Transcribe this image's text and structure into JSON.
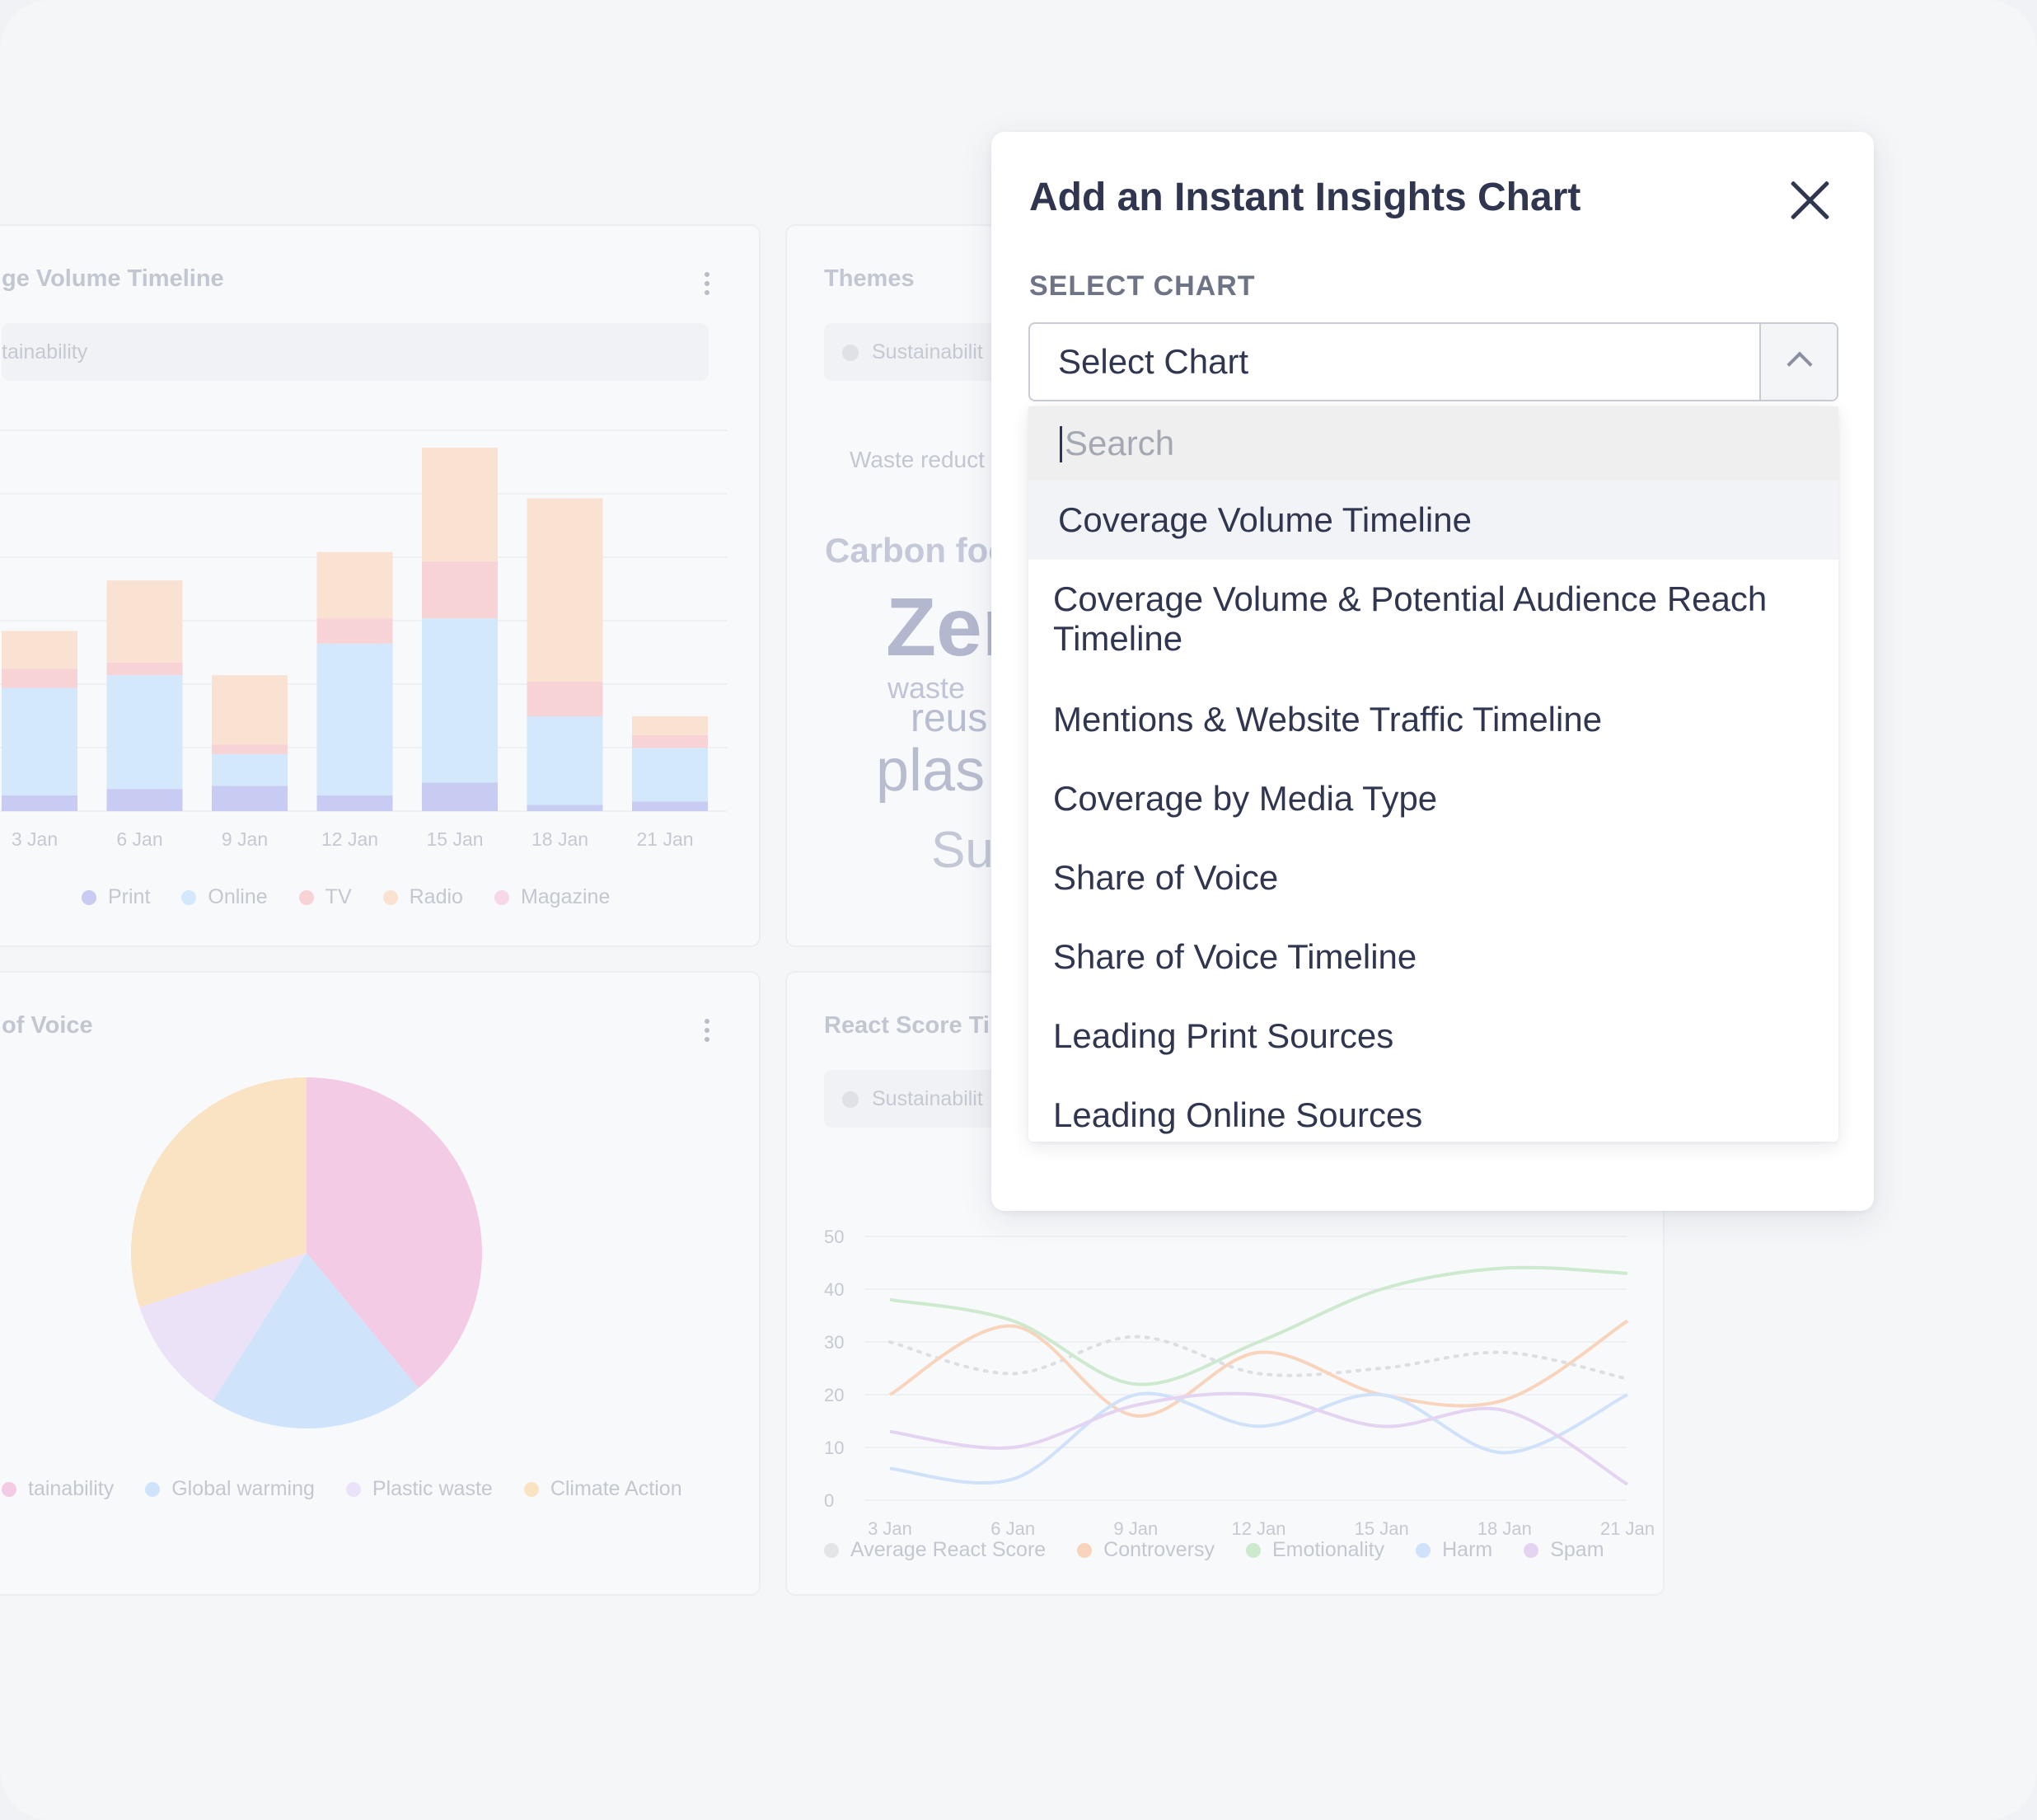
{
  "background_cards": {
    "coverage_timeline": {
      "title": "ge Volume Timeline",
      "filter": "tainability",
      "x_labels": [
        "3 Jan",
        "6 Jan",
        "9 Jan",
        "12 Jan",
        "15 Jan",
        "18 Jan",
        "21 Jan"
      ],
      "legend": [
        {
          "label": "Print",
          "color": "#c8cbf2"
        },
        {
          "label": "Online",
          "color": "#d3e8fb"
        },
        {
          "label": "TV",
          "color": "#f7d3d6"
        },
        {
          "label": "Radio",
          "color": "#f9e2d1"
        },
        {
          "label": "Magazine",
          "color": "#f7d7ea"
        }
      ]
    },
    "themes": {
      "title": "Themes",
      "filter": "Sustainabilit",
      "words": [
        "Waste reduct",
        "Carbon foo",
        "Zer",
        "waste",
        "reus",
        "plas",
        "Su"
      ]
    },
    "share_of_voice": {
      "title": "of Voice",
      "legend": [
        {
          "label": "tainability",
          "color": "#f4cbe5"
        },
        {
          "label": "Global warming",
          "color": "#cfe4fb"
        },
        {
          "label": "Plastic waste",
          "color": "#ece2f8"
        },
        {
          "label": "Climate Action",
          "color": "#f9e3c2"
        }
      ]
    },
    "react_score": {
      "title": "React Score Ti",
      "filter": "Sustainabilit",
      "y_labels": [
        "50",
        "40",
        "30",
        "20",
        "10",
        "0"
      ],
      "x_labels": [
        "3 Jan",
        "6 Jan",
        "9 Jan",
        "12 Jan",
        "15 Jan",
        "18 Jan",
        "21 Jan"
      ],
      "legend": [
        {
          "label": "Average React Score",
          "color": "#e4e5e9"
        },
        {
          "label": "Controversy",
          "color": "#f8d4bd"
        },
        {
          "label": "Emotionality",
          "color": "#cdeacf"
        },
        {
          "label": "Harm",
          "color": "#cfe2fa"
        },
        {
          "label": "Spam",
          "color": "#e4d4f1"
        }
      ]
    }
  },
  "chart_data": [
    {
      "type": "bar",
      "stacked": true,
      "categories": [
        "3 Jan",
        "6 Jan",
        "9 Jan",
        "12 Jan",
        "15 Jan",
        "18 Jan",
        "21 Jan"
      ],
      "series": [
        {
          "name": "Print",
          "values": [
            2.5,
            3.5,
            4,
            2.5,
            4.5,
            1,
            1.5
          ]
        },
        {
          "name": "Online",
          "values": [
            17,
            18,
            5,
            24,
            26,
            14,
            8.5
          ]
        },
        {
          "name": "TV",
          "values": [
            3,
            2,
            1.5,
            4,
            9,
            5.5,
            2
          ]
        },
        {
          "name": "Radio",
          "values": [
            6,
            13,
            11,
            10.5,
            18,
            29,
            3
          ]
        },
        {
          "name": "Magazine",
          "values": [
            0,
            0,
            0,
            0,
            0,
            0,
            0
          ]
        }
      ],
      "ylim": [
        0,
        60
      ]
    },
    {
      "type": "pie",
      "labels": [
        "tainability",
        "Global warming",
        "Plastic waste",
        "Climate Action"
      ],
      "values": [
        39,
        20,
        11,
        30
      ]
    },
    {
      "type": "line",
      "x": [
        "3 Jan",
        "6 Jan",
        "9 Jan",
        "12 Jan",
        "15 Jan",
        "18 Jan",
        "21 Jan"
      ],
      "ylim": [
        0,
        50
      ],
      "series": [
        {
          "name": "Average React Score",
          "values": [
            30,
            24,
            31,
            24,
            25,
            28,
            23
          ]
        },
        {
          "name": "Controversy",
          "values": [
            20,
            33,
            16,
            28,
            20,
            19,
            34
          ]
        },
        {
          "name": "Emotionality",
          "values": [
            38,
            34,
            22,
            30,
            40,
            44,
            43
          ]
        },
        {
          "name": "Harm",
          "values": [
            6,
            4,
            20,
            14,
            20,
            9,
            20
          ]
        },
        {
          "name": "Spam",
          "values": [
            13,
            10,
            18,
            20,
            14,
            17,
            3
          ]
        }
      ]
    }
  ],
  "modal": {
    "title": "Add an Instant Insights Chart",
    "select_label": "SELECT CHART",
    "select_value": "Select Chart",
    "search_placeholder": "Search",
    "options": [
      "Coverage Volume Timeline",
      "Coverage Volume & Potential Audience Reach Timeline",
      "Mentions & Website Traffic Timeline",
      "Coverage by Media Type",
      "Share of Voice",
      "Share of Voice Timeline",
      "Leading Print Sources",
      "Leading Online Sources"
    ]
  }
}
